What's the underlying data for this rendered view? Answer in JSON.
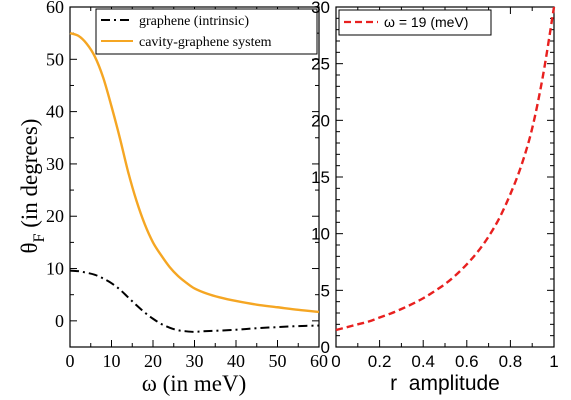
{
  "chart_data": [
    {
      "type": "line",
      "ylabel_main": "θ",
      "ylabel_sub": "F",
      "ylabel_rest": " (in degrees)",
      "xlabel": "ω (in meV)",
      "xlim": [
        0,
        60
      ],
      "ylim": [
        -5,
        60
      ],
      "xticks": [
        0,
        10,
        20,
        30,
        40,
        50,
        60
      ],
      "yticks": [
        0,
        10,
        20,
        30,
        40,
        50,
        60
      ],
      "legend_position": "top-right",
      "series": [
        {
          "name": "graphene (intrinsic)",
          "color": "#000000",
          "style": "dash-dot",
          "x": [
            0,
            2,
            4,
            6,
            8,
            10,
            12,
            14,
            16,
            18,
            20,
            22,
            24,
            26,
            28,
            30,
            32,
            35,
            40,
            45,
            50,
            55,
            60
          ],
          "y": [
            9.6,
            9.5,
            9.2,
            8.8,
            8.1,
            7.2,
            6.0,
            4.5,
            3.0,
            1.6,
            0.4,
            -0.6,
            -1.3,
            -1.8,
            -2.0,
            -2.1,
            -2.0,
            -1.9,
            -1.7,
            -1.4,
            -1.2,
            -1.0,
            -0.9
          ]
        },
        {
          "name": "cavity-graphene system",
          "color": "#f5a623",
          "style": "solid",
          "x": [
            0,
            2,
            4,
            6,
            8,
            10,
            12,
            14,
            16,
            18,
            20,
            22,
            24,
            26,
            28,
            30,
            33,
            36,
            40,
            45,
            50,
            55,
            60
          ],
          "y": [
            55.0,
            54.5,
            53.0,
            50.5,
            46.5,
            41.0,
            35.0,
            28.5,
            23.0,
            18.5,
            15.0,
            12.5,
            10.3,
            8.6,
            7.3,
            6.2,
            5.2,
            4.5,
            3.8,
            3.1,
            2.6,
            2.1,
            1.7
          ]
        }
      ]
    },
    {
      "type": "line",
      "xlabel": "r  amplitude",
      "ylabel": "",
      "xlim": [
        0,
        1
      ],
      "ylim": [
        0,
        30
      ],
      "xticks": [
        0,
        0.2,
        0.4,
        0.6,
        0.8,
        1
      ],
      "yticks": [
        0,
        5,
        10,
        15,
        20,
        25,
        30
      ],
      "legend_position": "top-left",
      "series": [
        {
          "name": "ω = 19 (meV)",
          "color": "#e8201f",
          "style": "dashed",
          "x": [
            0,
            0.05,
            0.1,
            0.15,
            0.2,
            0.25,
            0.3,
            0.35,
            0.4,
            0.45,
            0.5,
            0.55,
            0.6,
            0.65,
            0.7,
            0.75,
            0.8,
            0.85,
            0.9,
            0.95,
            1.0
          ],
          "y": [
            1.5,
            1.75,
            2.0,
            2.25,
            2.6,
            2.95,
            3.35,
            3.8,
            4.3,
            4.9,
            5.55,
            6.35,
            7.3,
            8.4,
            9.75,
            11.4,
            13.5,
            16.0,
            19.3,
            24.0,
            30.0
          ]
        }
      ]
    }
  ]
}
